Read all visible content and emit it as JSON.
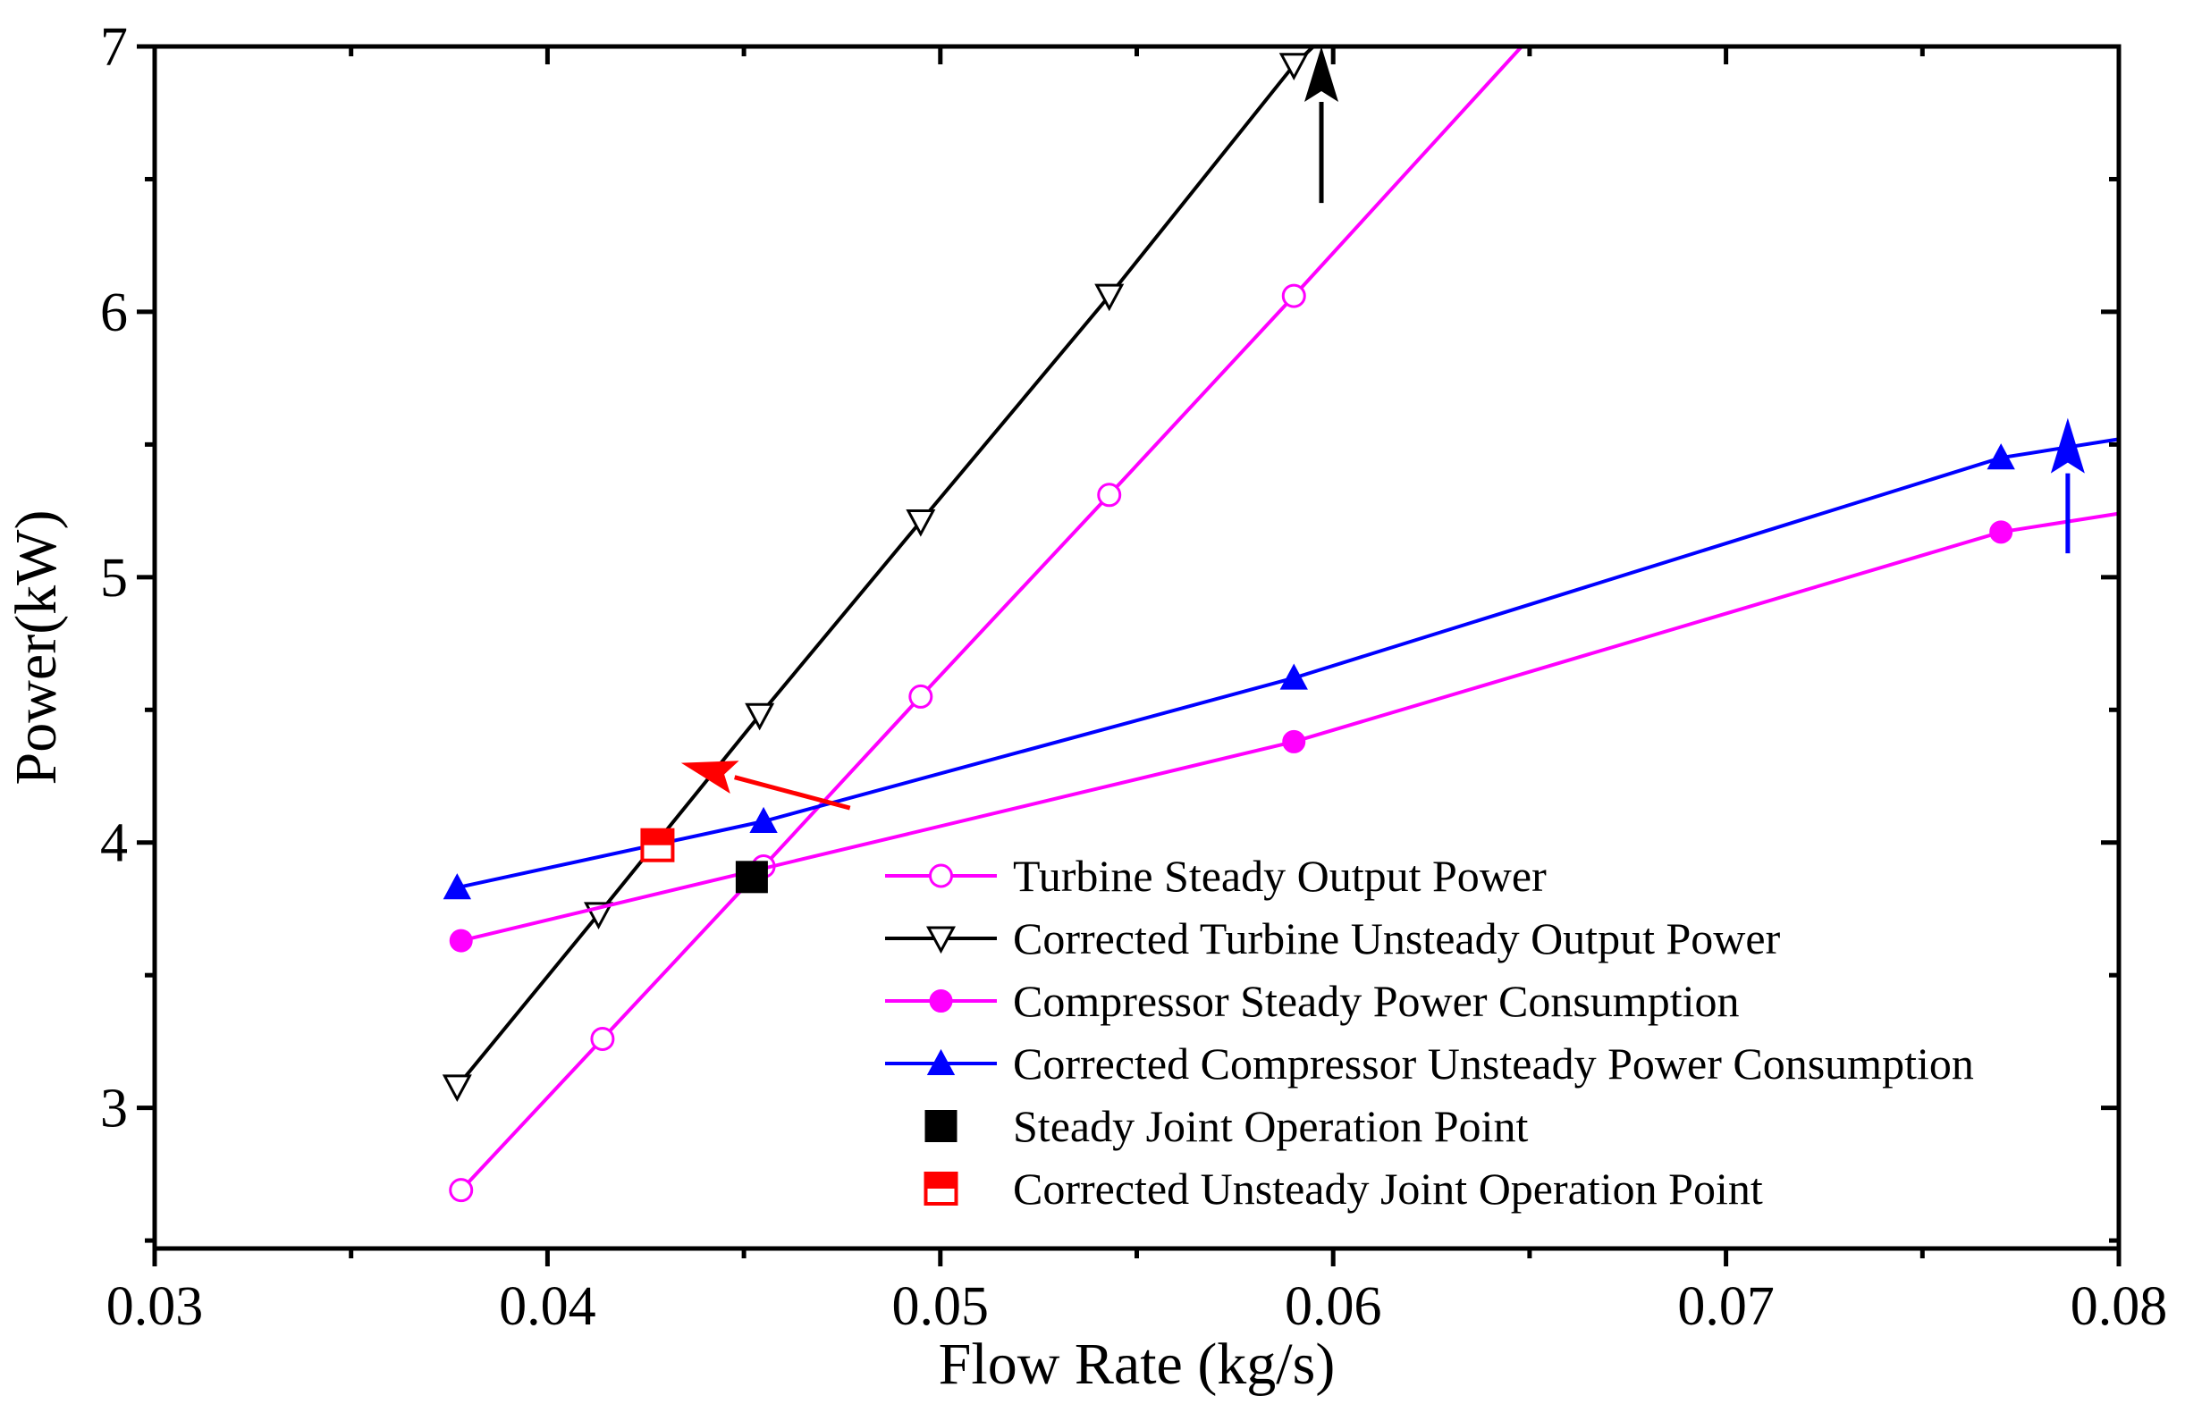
{
  "chart_data": {
    "type": "line",
    "title": "",
    "xlabel": "Flow Rate (kg/s)",
    "ylabel": "Power(kW)",
    "xlim": [
      0.03,
      0.08
    ],
    "ylim": [
      2.47,
      7.0
    ],
    "xticks": [
      {
        "value": 0.03,
        "label": "0.03"
      },
      {
        "value": 0.04,
        "label": "0.04"
      },
      {
        "value": 0.05,
        "label": "0.05"
      },
      {
        "value": 0.06,
        "label": "0.06"
      },
      {
        "value": 0.07,
        "label": "0.07"
      },
      {
        "value": 0.08,
        "label": "0.08"
      }
    ],
    "yticks": [
      {
        "value": 3,
        "label": "3"
      },
      {
        "value": 4,
        "label": "4"
      },
      {
        "value": 5,
        "label": "5"
      },
      {
        "value": 6,
        "label": "6"
      },
      {
        "value": 7,
        "label": "7"
      }
    ],
    "x_minor_step": 0.005,
    "y_minor_step": 0.5,
    "grid": false,
    "legend_position": "bottom-right",
    "series": [
      {
        "name": "Turbine Steady Output Power",
        "color": "#ff00ff",
        "marker": "circle-open",
        "points": [
          [
            0.0378,
            2.69
          ],
          [
            0.0414,
            3.26
          ],
          [
            0.0455,
            3.91
          ],
          [
            0.0495,
            4.55
          ],
          [
            0.0543,
            5.31
          ],
          [
            0.059,
            6.06
          ]
        ],
        "line_extension": [
          0.0648,
          7.0
        ]
      },
      {
        "name": "Corrected Turbine Unsteady Output Power",
        "color": "#000000",
        "marker": "triangle-down-open",
        "points": [
          [
            0.0377,
            3.08
          ],
          [
            0.0413,
            3.73
          ],
          [
            0.0454,
            4.48
          ],
          [
            0.0495,
            5.21
          ],
          [
            0.0543,
            6.06
          ],
          [
            0.059,
            6.93
          ]
        ],
        "line_extension": [
          0.0595,
          7.0
        ]
      },
      {
        "name": "Compressor Steady Power Consumption",
        "color": "#ff00ff",
        "marker": "circle-filled",
        "points": [
          [
            0.0378,
            3.63
          ],
          [
            0.059,
            4.38
          ],
          [
            0.077,
            5.17
          ]
        ],
        "line_extension": [
          0.08,
          5.24
        ]
      },
      {
        "name": "Corrected Compressor Unsteady Power Consumption",
        "color": "#0000ff",
        "marker": "triangle-up-filled",
        "points": [
          [
            0.0377,
            3.83
          ],
          [
            0.0455,
            4.08
          ],
          [
            0.059,
            4.62
          ],
          [
            0.077,
            5.45
          ]
        ],
        "line_extension": [
          0.08,
          5.52
        ]
      }
    ],
    "points": [
      {
        "name": "Steady Joint Operation Point",
        "x": 0.0452,
        "y": 3.87,
        "marker": "square-filled",
        "color": "#000000"
      },
      {
        "name": "Corrected Unsteady Joint Operation Point",
        "x": 0.0428,
        "y": 3.99,
        "marker": "square-half",
        "color": "#ff0000"
      }
    ],
    "annotations": [
      {
        "type": "arrow",
        "color": "#000000",
        "from": [
          0.0597,
          6.41
        ],
        "to": [
          0.0597,
          7.0
        ]
      },
      {
        "type": "arrow",
        "color": "#0000ff",
        "from": [
          0.0787,
          5.09
        ],
        "to": [
          0.0787,
          5.6
        ]
      },
      {
        "type": "arrow",
        "color": "#ff0000",
        "from": [
          0.0477,
          4.13
        ],
        "to": [
          0.0434,
          4.3
        ]
      }
    ]
  }
}
